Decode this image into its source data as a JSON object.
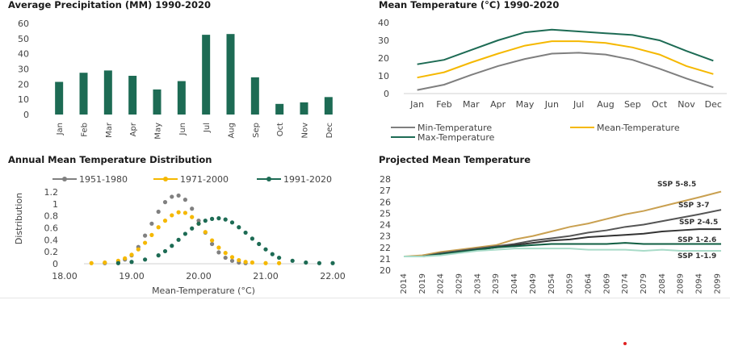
{
  "chart_data": [
    {
      "type": "bar",
      "title": "Average Precipitation (MM) 1990-2020",
      "categories": [
        "Jan",
        "Feb",
        "Mar",
        "Apr",
        "May",
        "Jun",
        "Jul",
        "Aug",
        "Sep",
        "Oct",
        "Nov",
        "Dec"
      ],
      "values": [
        21.5,
        27.5,
        29,
        25.5,
        16.5,
        22,
        52.5,
        53,
        24.5,
        7,
        8,
        11.5
      ],
      "ylim": [
        0,
        60
      ],
      "yticks": [
        0,
        10,
        20,
        30,
        40,
        50,
        60
      ],
      "color": "#1d6b54",
      "grid": false
    },
    {
      "type": "line",
      "title": "Mean Temperature (°C) 1990-2020",
      "categories": [
        "Jan",
        "Feb",
        "Mar",
        "Apr",
        "May",
        "Jun",
        "Jul",
        "Aug",
        "Sep",
        "Oct",
        "Nov",
        "Dec"
      ],
      "series": [
        {
          "name": "Min-Temperature",
          "color": "#7f7f7f",
          "values": [
            2,
            5,
            10.5,
            15.5,
            19.5,
            22.5,
            23,
            22,
            19,
            14,
            8.5,
            3.5
          ]
        },
        {
          "name": "Mean-Temperature",
          "color": "#f5b800",
          "values": [
            9,
            12,
            17.5,
            22.5,
            27,
            29.5,
            29.5,
            28.5,
            26,
            22,
            15.5,
            11
          ]
        },
        {
          "name": "Max-Temperature",
          "color": "#1d6b54",
          "values": [
            16.5,
            19,
            24.5,
            30,
            34.5,
            36,
            35,
            34,
            33,
            30,
            24,
            18.5
          ]
        }
      ],
      "ylim": [
        0,
        40
      ],
      "yticks": [
        0,
        10,
        20,
        30,
        40
      ],
      "legend": "bottom",
      "grid": false
    },
    {
      "type": "line",
      "title": "Annual Mean Temperature Distribution",
      "xlabel": "Mean-Temperature (°C)",
      "ylabel": "Distribution",
      "xlim": [
        18,
        22
      ],
      "ylim": [
        0,
        1.2
      ],
      "xticks": [
        "18.00",
        "19.00",
        "20.00",
        "21.00",
        "22.00"
      ],
      "xtick_values": [
        18,
        19,
        20,
        21,
        22
      ],
      "yticks": [
        "0",
        "0.2",
        "0.4",
        "0.6",
        "0.8",
        "1",
        "1.2"
      ],
      "ytick_values": [
        0,
        0.2,
        0.4,
        0.6,
        0.8,
        1,
        1.2
      ],
      "legend": "top",
      "series": [
        {
          "name": "1951-1980",
          "color": "#808080",
          "x": [
            18.6,
            18.8,
            18.9,
            19.0,
            19.1,
            19.2,
            19.3,
            19.4,
            19.5,
            19.6,
            19.7,
            19.8,
            19.9,
            20.0,
            20.1,
            20.2,
            20.3,
            20.4,
            20.5,
            20.6,
            20.7
          ],
          "y": [
            0.01,
            0.03,
            0.07,
            0.14,
            0.28,
            0.47,
            0.67,
            0.87,
            1.03,
            1.12,
            1.14,
            1.07,
            0.92,
            0.72,
            0.52,
            0.33,
            0.19,
            0.1,
            0.05,
            0.02,
            0.01
          ]
        },
        {
          "name": "1971-2000",
          "color": "#f5b800",
          "x": [
            18.4,
            18.6,
            18.8,
            18.9,
            19.0,
            19.1,
            19.2,
            19.3,
            19.4,
            19.5,
            19.6,
            19.7,
            19.8,
            19.9,
            20.0,
            20.1,
            20.2,
            20.3,
            20.4,
            20.5,
            20.6,
            20.7,
            20.8,
            21.0,
            21.2
          ],
          "y": [
            0.01,
            0.02,
            0.05,
            0.09,
            0.15,
            0.24,
            0.35,
            0.48,
            0.61,
            0.72,
            0.81,
            0.86,
            0.85,
            0.78,
            0.67,
            0.53,
            0.39,
            0.27,
            0.18,
            0.11,
            0.06,
            0.03,
            0.02,
            0.01,
            0.01
          ]
        },
        {
          "name": "1991-2020",
          "color": "#1d6b54",
          "x": [
            18.8,
            19.0,
            19.2,
            19.4,
            19.5,
            19.6,
            19.7,
            19.8,
            19.9,
            20.0,
            20.1,
            20.2,
            20.3,
            20.4,
            20.5,
            20.6,
            20.7,
            20.8,
            20.9,
            21.0,
            21.1,
            21.2,
            21.4,
            21.6,
            21.8,
            22.0
          ],
          "y": [
            0.01,
            0.03,
            0.07,
            0.14,
            0.21,
            0.3,
            0.4,
            0.5,
            0.59,
            0.67,
            0.72,
            0.75,
            0.76,
            0.74,
            0.69,
            0.61,
            0.52,
            0.42,
            0.33,
            0.24,
            0.16,
            0.1,
            0.05,
            0.02,
            0.01,
            0.01
          ]
        }
      ]
    },
    {
      "type": "line",
      "title": "Projected Mean Temperature",
      "xlim": [
        2014,
        2100
      ],
      "ylim": [
        20,
        28
      ],
      "yticks": [
        20,
        21,
        22,
        23,
        24,
        25,
        26,
        27,
        28
      ],
      "xticks": [
        2014,
        2019,
        2024,
        2029,
        2034,
        2039,
        2044,
        2049,
        2054,
        2059,
        2064,
        2069,
        2074,
        2079,
        2084,
        2089,
        2094,
        2099
      ],
      "grid": false,
      "series": [
        {
          "name": "SSP 5-8.5",
          "color": "#c9a050",
          "x": [
            2014,
            2019,
            2024,
            2029,
            2034,
            2039,
            2044,
            2049,
            2054,
            2059,
            2064,
            2069,
            2074,
            2079,
            2084,
            2089,
            2094,
            2100
          ],
          "y": [
            21.2,
            21.3,
            21.6,
            21.8,
            22.0,
            22.2,
            22.7,
            23.0,
            23.4,
            23.8,
            24.1,
            24.5,
            24.9,
            25.2,
            25.6,
            26.0,
            26.4,
            26.9
          ]
        },
        {
          "name": "SSP 3-7",
          "color": "#555555",
          "x": [
            2014,
            2019,
            2024,
            2029,
            2034,
            2039,
            2044,
            2049,
            2054,
            2059,
            2064,
            2069,
            2074,
            2079,
            2084,
            2089,
            2094,
            2100
          ],
          "y": [
            21.2,
            21.2,
            21.5,
            21.7,
            21.9,
            22.1,
            22.3,
            22.6,
            22.8,
            23.0,
            23.3,
            23.5,
            23.8,
            24.0,
            24.3,
            24.6,
            24.9,
            25.3
          ]
        },
        {
          "name": "SSP 2-4.5",
          "color": "#333333",
          "x": [
            2014,
            2019,
            2024,
            2029,
            2034,
            2039,
            2044,
            2049,
            2054,
            2059,
            2064,
            2069,
            2074,
            2079,
            2084,
            2089,
            2094,
            2100
          ],
          "y": [
            21.2,
            21.2,
            21.4,
            21.6,
            21.8,
            22.0,
            22.2,
            22.4,
            22.6,
            22.7,
            22.9,
            23.0,
            23.1,
            23.2,
            23.4,
            23.5,
            23.6,
            23.6
          ]
        },
        {
          "name": "SSP 1-2.6",
          "color": "#0f5e42",
          "x": [
            2014,
            2019,
            2024,
            2029,
            2034,
            2039,
            2044,
            2049,
            2054,
            2059,
            2064,
            2069,
            2074,
            2079,
            2084,
            2089,
            2094,
            2100
          ],
          "y": [
            21.2,
            21.2,
            21.4,
            21.6,
            21.8,
            22.0,
            22.1,
            22.2,
            22.3,
            22.3,
            22.3,
            22.3,
            22.4,
            22.3,
            22.3,
            22.3,
            22.3,
            22.3
          ]
        },
        {
          "name": "SSP 1-1.9",
          "color": "#a8dbc8",
          "x": [
            2014,
            2019,
            2024,
            2029,
            2034,
            2039,
            2044,
            2049,
            2054,
            2059,
            2064,
            2069,
            2074,
            2079,
            2084,
            2089,
            2094,
            2100
          ],
          "y": [
            21.2,
            21.2,
            21.3,
            21.5,
            21.7,
            21.8,
            21.9,
            21.9,
            21.9,
            21.9,
            21.8,
            21.8,
            21.8,
            21.7,
            21.8,
            21.7,
            21.7,
            21.7
          ]
        }
      ]
    }
  ]
}
